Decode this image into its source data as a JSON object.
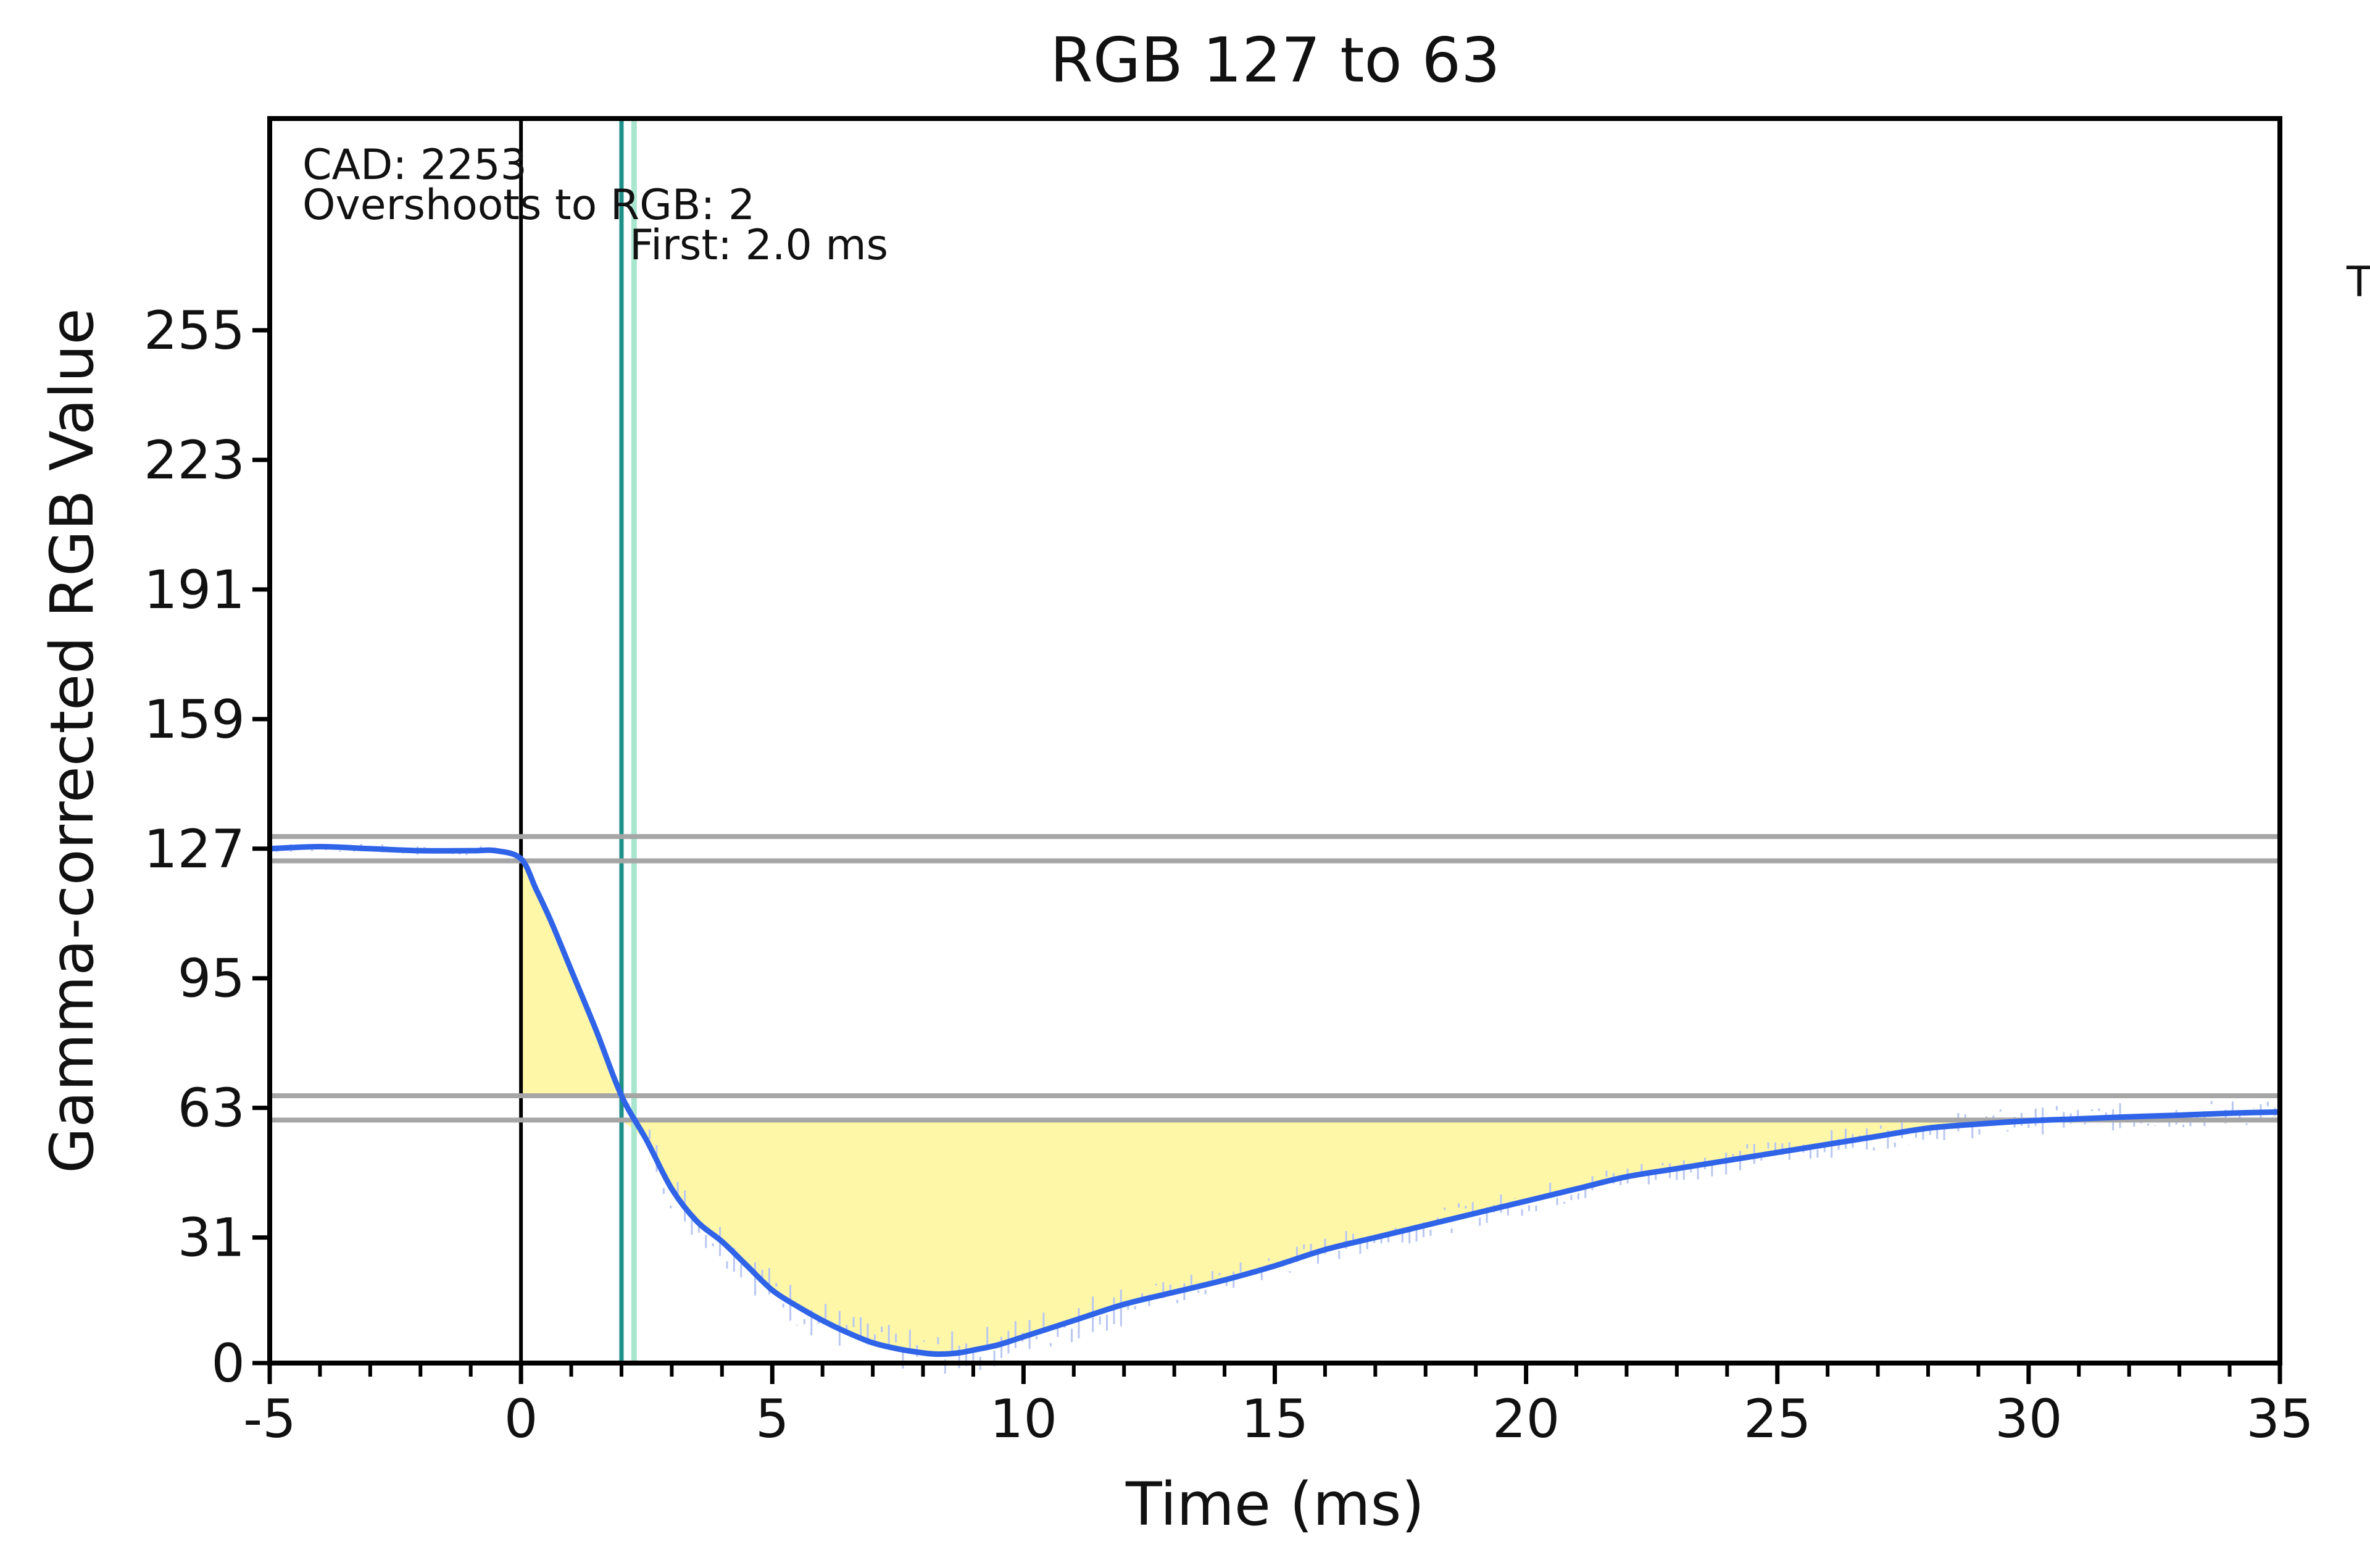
{
  "chart_data": {
    "type": "line",
    "title": "RGB 127 to 63",
    "xlabel": "Time (ms)",
    "ylabel": "Gamma-corrected RGB Value",
    "xlim": [
      -5,
      35
    ],
    "ylim": [
      0,
      320
    ],
    "x_ticks": [
      -5,
      0,
      5,
      10,
      15,
      20,
      25,
      30,
      35
    ],
    "x_tick_labels": [
      "-5",
      "0",
      "5",
      "10",
      "15",
      "20",
      "25",
      "30",
      "35"
    ],
    "x_minor_step": 1,
    "y_ticks": [
      0,
      31,
      63,
      95,
      127,
      159,
      191,
      223,
      255
    ],
    "y_tick_labels": [
      "0",
      "31",
      "63",
      "95",
      "127",
      "159",
      "191",
      "223",
      "255"
    ],
    "grid": false,
    "annotations": {
      "cad": "CAD: 2253",
      "overshoot": "Overshoots to RGB: 2",
      "first": "First: 2.0 ms",
      "right_edge_text": "T"
    },
    "tolerance_lines": [
      130,
      124,
      66,
      60
    ],
    "start_marker_x": 0,
    "first_marker_x": 2.0,
    "secondary_marker_x": 2.25,
    "colors": {
      "response_line": "#2f63e8",
      "raw_noise": "#b9c7f2",
      "fill": "#fff7a8",
      "tolerance": "#a6a6a6",
      "start_marker": "#000000",
      "first_marker": "#1f8f8a",
      "secondary_marker": "#a9e6cf",
      "frame": "#000000"
    },
    "series": [
      {
        "x": [
          -5,
          -4,
          -3,
          -2,
          -1,
          -0.5,
          0,
          0.3,
          0.6,
          1,
          1.5,
          2,
          2.5,
          3,
          3.5,
          4,
          4.5,
          5,
          5.5,
          6,
          6.5,
          7,
          7.5,
          8,
          8.3,
          8.7,
          9,
          9.5,
          10,
          11,
          12,
          13,
          14,
          15,
          16,
          17,
          18,
          19,
          20,
          21,
          22,
          23,
          24,
          25,
          26,
          27,
          28,
          29,
          30,
          31,
          32,
          33,
          34,
          35
        ],
        "y": [
          127,
          127.5,
          127,
          126.5,
          126.5,
          126.5,
          124.5,
          117,
          109,
          97,
          82,
          66,
          55,
          43,
          35,
          30,
          24,
          18,
          14,
          10.5,
          7.5,
          5,
          3.5,
          2.5,
          2.2,
          2.5,
          3.2,
          4.5,
          6.5,
          10.5,
          14.5,
          17.5,
          20.5,
          24,
          28,
          31,
          34,
          37,
          40,
          43,
          46,
          48,
          50,
          52,
          54,
          56,
          58,
          59,
          59.8,
          60.3,
          60.8,
          61.2,
          61.7,
          62
        ]
      }
    ]
  }
}
